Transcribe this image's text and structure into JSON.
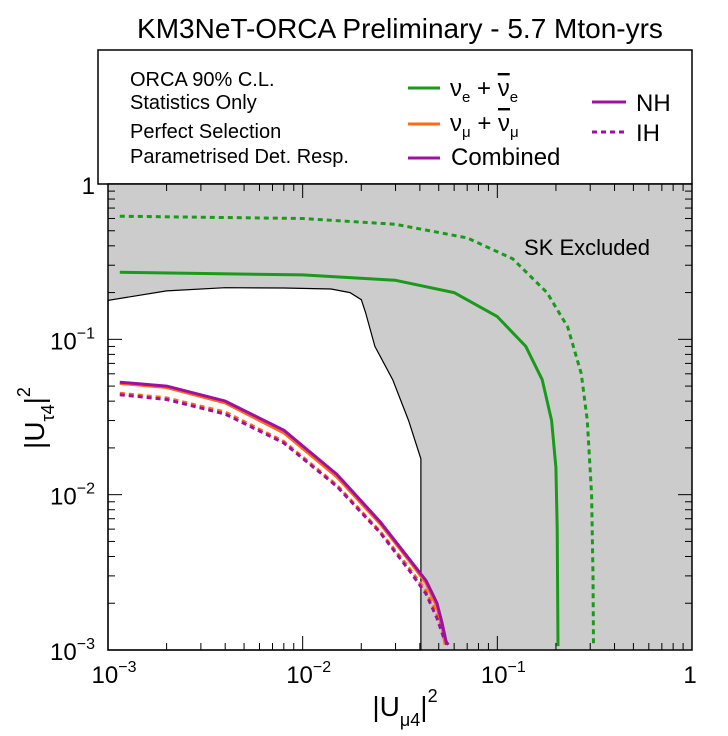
{
  "chart_data": {
    "type": "line",
    "title": "KM3NeT-ORCA Preliminary - 5.7 Mton-yrs",
    "x_axis": {
      "label_base": "|U",
      "label_sub": "μ4",
      "label_sup": "2",
      "scale": "log",
      "range": [
        0.001,
        1
      ],
      "tick_values": [
        0.001,
        0.01,
        0.1,
        1
      ],
      "tick_labels": [
        {
          "base": "10",
          "exp": "−3"
        },
        {
          "base": "10",
          "exp": "−2"
        },
        {
          "base": "10",
          "exp": "−1"
        },
        {
          "base": "1",
          "exp": ""
        }
      ]
    },
    "y_axis": {
      "label_base": "|U",
      "label_sub": "τ4",
      "label_sup": "2",
      "scale": "log",
      "range": [
        0.001,
        1
      ],
      "tick_values": [
        0.001,
        0.01,
        0.1,
        1
      ],
      "tick_labels": [
        {
          "base": "10",
          "exp": "−3"
        },
        {
          "base": "10",
          "exp": "−2"
        },
        {
          "base": "10",
          "exp": "−1"
        },
        {
          "base": "1",
          "exp": ""
        }
      ]
    },
    "info_lines": [
      "ORCA 90% C.L.",
      "Statistics Only",
      "Perfect Selection",
      "Parametrised Det. Resp."
    ],
    "legend": {
      "nue_label": "ν_e + ν̄_e",
      "numu_label": "ν_μ + ν̄_μ",
      "combined_label": "Combined",
      "nh_label": "NH",
      "ih_label": "IH"
    },
    "annotation": "SK Excluded",
    "colors": {
      "nue": "#1a9a1a",
      "numu": "#ff6a14",
      "combined": "#a010a0",
      "excluded_fill": "#cccccc"
    },
    "series": [
      {
        "name": "SK Excluded boundary",
        "type": "area",
        "points": [
          [
            0.001,
            0.178
          ],
          [
            0.002,
            0.205
          ],
          [
            0.004,
            0.215
          ],
          [
            0.008,
            0.214
          ],
          [
            0.014,
            0.211
          ],
          [
            0.0175,
            0.2
          ],
          [
            0.02,
            0.18
          ],
          [
            0.021,
            0.15
          ],
          [
            0.0235,
            0.09
          ],
          [
            0.029,
            0.055
          ],
          [
            0.035,
            0.03
          ],
          [
            0.0405,
            0.017
          ],
          [
            0.0405,
            0.001
          ]
        ]
      },
      {
        "name": "ν_e + ν̄_e NH",
        "color": "nue",
        "dash": false,
        "points": [
          [
            0.00115,
            0.27
          ],
          [
            0.01,
            0.26
          ],
          [
            0.03,
            0.24
          ],
          [
            0.06,
            0.2
          ],
          [
            0.1,
            0.14
          ],
          [
            0.14,
            0.09
          ],
          [
            0.17,
            0.055
          ],
          [
            0.19,
            0.03
          ],
          [
            0.2,
            0.015
          ],
          [
            0.203,
            0.006
          ],
          [
            0.205,
            0.00106
          ]
        ]
      },
      {
        "name": "ν_e + ν̄_e IH",
        "color": "nue",
        "dash": true,
        "points": [
          [
            0.00115,
            0.62
          ],
          [
            0.01,
            0.6
          ],
          [
            0.03,
            0.55
          ],
          [
            0.07,
            0.45
          ],
          [
            0.12,
            0.33
          ],
          [
            0.18,
            0.2
          ],
          [
            0.23,
            0.12
          ],
          [
            0.27,
            0.06
          ],
          [
            0.29,
            0.03
          ],
          [
            0.305,
            0.01
          ],
          [
            0.31,
            0.003
          ],
          [
            0.312,
            0.00106
          ]
        ]
      },
      {
        "name": "ν_μ + ν̄_μ NH",
        "color": "numu",
        "dash": false,
        "points": [
          [
            0.00115,
            0.052
          ],
          [
            0.002,
            0.049
          ],
          [
            0.004,
            0.039
          ],
          [
            0.008,
            0.025
          ],
          [
            0.015,
            0.013
          ],
          [
            0.025,
            0.0065
          ],
          [
            0.035,
            0.0038
          ],
          [
            0.043,
            0.0027
          ],
          [
            0.049,
            0.0019
          ],
          [
            0.052,
            0.0014
          ],
          [
            0.054,
            0.00108
          ]
        ]
      },
      {
        "name": "ν_μ + ν̄_μ IH",
        "color": "numu",
        "dash": true,
        "points": [
          [
            0.00115,
            0.045
          ],
          [
            0.002,
            0.042
          ],
          [
            0.004,
            0.034
          ],
          [
            0.008,
            0.022
          ],
          [
            0.015,
            0.0115
          ],
          [
            0.025,
            0.0058
          ],
          [
            0.035,
            0.0034
          ],
          [
            0.043,
            0.0024
          ],
          [
            0.049,
            0.0017
          ],
          [
            0.053,
            0.0013
          ],
          [
            0.055,
            0.00108
          ]
        ]
      },
      {
        "name": "Combined NH",
        "color": "combined",
        "dash": false,
        "points": [
          [
            0.00115,
            0.053
          ],
          [
            0.002,
            0.05
          ],
          [
            0.004,
            0.04
          ],
          [
            0.008,
            0.026
          ],
          [
            0.015,
            0.0135
          ],
          [
            0.025,
            0.0067
          ],
          [
            0.035,
            0.0039
          ],
          [
            0.043,
            0.0028
          ],
          [
            0.049,
            0.002
          ],
          [
            0.052,
            0.0015
          ],
          [
            0.055,
            0.00108
          ]
        ]
      },
      {
        "name": "Combined IH",
        "color": "combined",
        "dash": true,
        "points": [
          [
            0.00115,
            0.044
          ],
          [
            0.002,
            0.041
          ],
          [
            0.004,
            0.033
          ],
          [
            0.008,
            0.0215
          ],
          [
            0.015,
            0.0113
          ],
          [
            0.025,
            0.0057
          ],
          [
            0.035,
            0.0033
          ],
          [
            0.043,
            0.0023
          ],
          [
            0.049,
            0.0016
          ],
          [
            0.053,
            0.0012
          ],
          [
            0.056,
            0.00108
          ]
        ]
      }
    ]
  }
}
